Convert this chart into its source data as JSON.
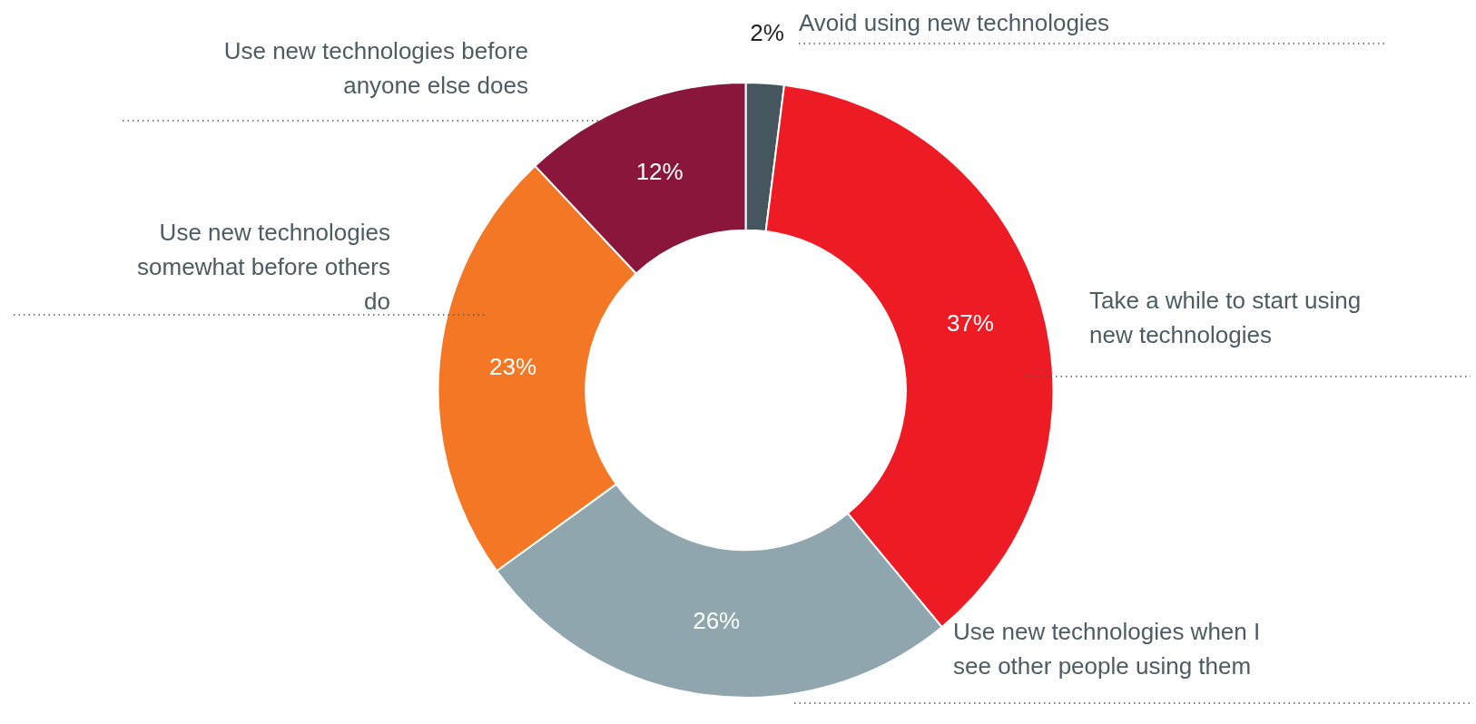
{
  "chart_data": {
    "type": "donut",
    "categories": [
      "Avoid using new technologies",
      "Take a while to start using new technologies",
      "Use new technologies when I see other people using them",
      "Use new technologies somewhat before others do",
      "Use new technologies before anyone else does"
    ],
    "values": [
      2,
      37,
      26,
      23,
      12
    ],
    "colors": [
      "#45565e",
      "#ed1c24",
      "#8fa6ae",
      "#f47725",
      "#8a163c"
    ],
    "value_labels": [
      "2%",
      "37%",
      "26%",
      "23%",
      "12%"
    ]
  }
}
